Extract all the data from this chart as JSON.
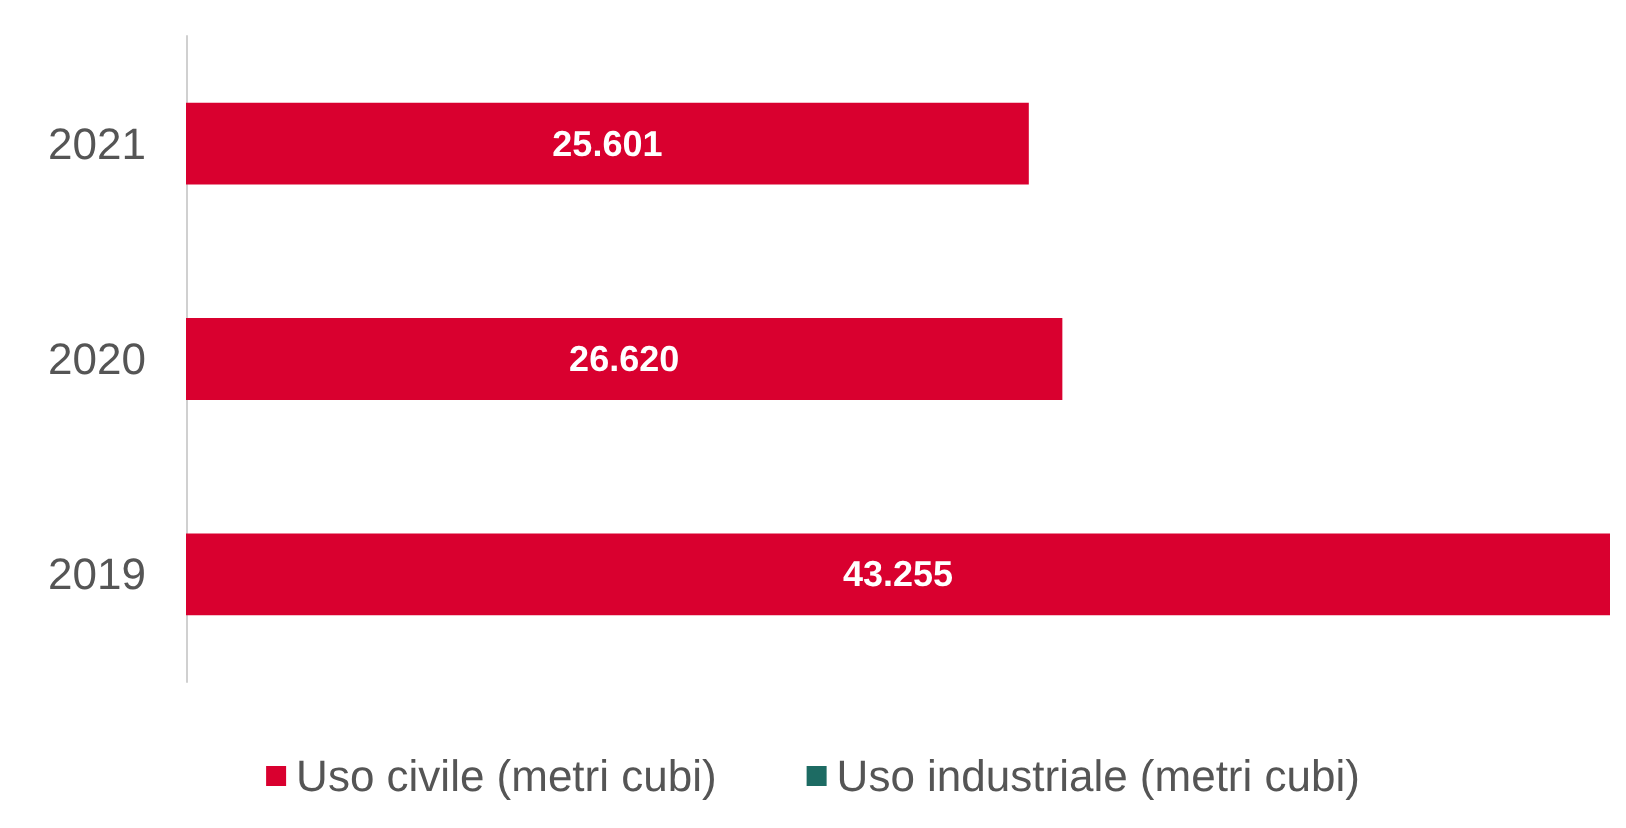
{
  "chart_data": {
    "type": "bar",
    "orientation": "horizontal",
    "categories": [
      "2021",
      "2020",
      "2019"
    ],
    "series": [
      {
        "name": "Uso civile (metri cubi)",
        "color": "#d9002f",
        "values": [
          25601,
          26620,
          43255
        ],
        "value_labels": [
          "25.601",
          "26.620",
          "43.255"
        ]
      },
      {
        "name": "Uso industriale (metri cubi)",
        "color": "#1d6b63",
        "values": [
          null,
          null,
          null
        ]
      }
    ],
    "legend": "bottom"
  }
}
